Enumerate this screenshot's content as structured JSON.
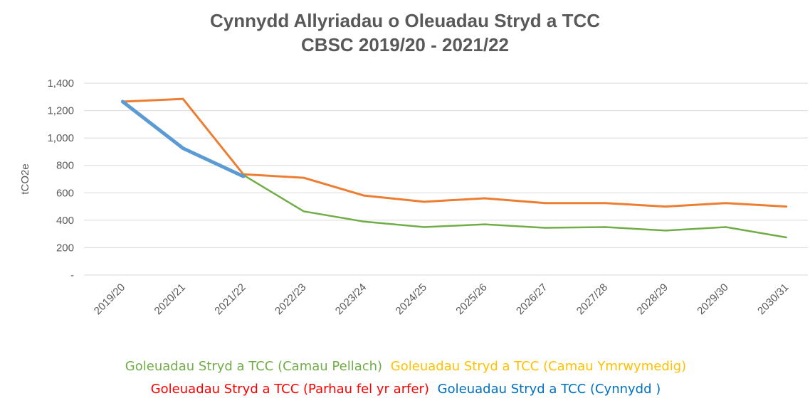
{
  "chart_data": {
    "type": "line",
    "title": "Cynnydd Allyriadau o Oleuadau Stryd a TCC CBSC  2019/20 - 2021/22",
    "y_label": "tCO2e",
    "categories": [
      "2019/20",
      "2020/21",
      "2021/22",
      "2022/23",
      "2023/24",
      "2024/25",
      "2025/26",
      "2026/27",
      "2027/28",
      "2028/29",
      "2029/30",
      "2030/31"
    ],
    "series": [
      {
        "name": "Goleuadau Stryd a TCC (Camau Pellach)",
        "color": "#70ad47",
        "legend_color": "#70ad47",
        "width": 2.5,
        "values": [
          null,
          null,
          730,
          465,
          390,
          350,
          370,
          345,
          350,
          325,
          350,
          275
        ]
      },
      {
        "name": "Goleuadau Stryd a TCC (Camau Ymrwymedig)",
        "color": "#ffc000",
        "legend_color": "#ffc000",
        "width": 2.5,
        "values": [
          null,
          null,
          null,
          null,
          null,
          null,
          null,
          null,
          null,
          null,
          null,
          null
        ]
      },
      {
        "name": "Goleuadau Stryd a TCC (Parhau fel yr arfer)",
        "color": "#ed7d31",
        "legend_color": "#ff0000",
        "width": 3,
        "values": [
          1265,
          1285,
          735,
          710,
          580,
          535,
          560,
          525,
          525,
          500,
          525,
          500
        ]
      },
      {
        "name": "Goleuadau Stryd a TCC (Cynnydd )",
        "color": "#5b9bd5",
        "legend_color": "#0070c0",
        "width": 5,
        "values": [
          1265,
          925,
          720,
          null,
          null,
          null,
          null,
          null,
          null,
          null,
          null,
          null
        ]
      }
    ],
    "ylim": [
      0,
      1400
    ],
    "yticks": [
      {
        "value": 0,
        "label": "-"
      },
      200,
      400,
      600,
      800,
      {
        "value": 1000,
        "label": "1,000"
      },
      {
        "value": 1200,
        "label": "1,200"
      },
      {
        "value": 1400,
        "label": "1,400"
      }
    ],
    "grid": true
  }
}
